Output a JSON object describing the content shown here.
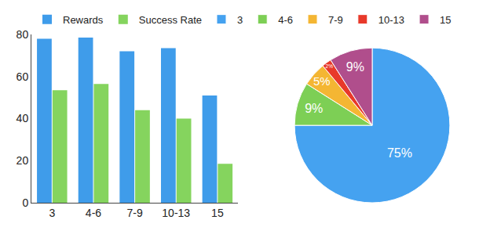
{
  "chart_data": [
    {
      "type": "bar",
      "categories": [
        "3",
        "4-6",
        "7-9",
        "10-13",
        "15"
      ],
      "series": [
        {
          "name": "Rewards",
          "color": "#3f9cea",
          "values": [
            78,
            78.5,
            72,
            73.5,
            51
          ]
        },
        {
          "name": "Success Rate",
          "color": "#85d45e",
          "values": [
            53.5,
            56.5,
            44,
            40,
            18.5
          ]
        }
      ],
      "ylim": [
        0,
        80
      ],
      "yticks": [
        0,
        20,
        40,
        60,
        80
      ],
      "grid": false,
      "legend": "top"
    },
    {
      "type": "pie",
      "categories": [
        "3",
        "4-6",
        "7-9",
        "10-13",
        "15"
      ],
      "values": [
        75,
        9,
        5,
        2,
        9
      ],
      "value_labels": [
        "75%",
        "9%",
        "5%",
        "2%",
        "9%"
      ],
      "colors": [
        "#45a2f0",
        "#7dcf55",
        "#f4b633",
        "#e8392a",
        "#b04e8c"
      ],
      "data_labels": true,
      "legend": "top"
    }
  ]
}
